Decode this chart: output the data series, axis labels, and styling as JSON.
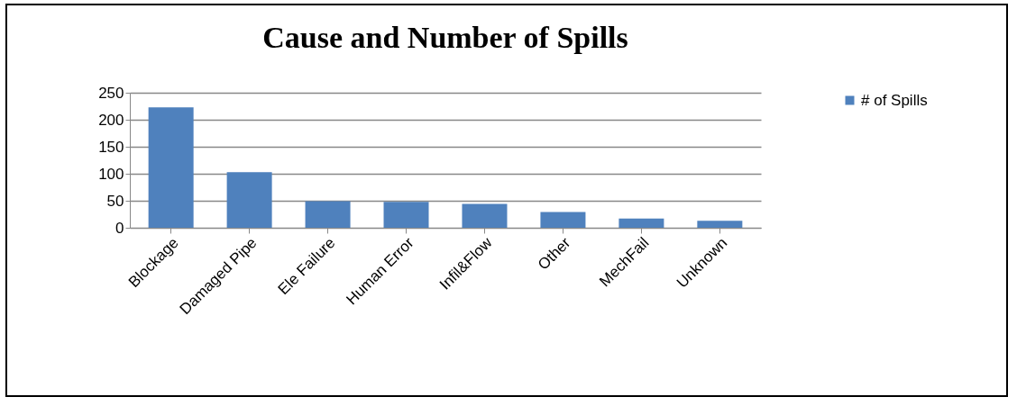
{
  "chart_data": {
    "type": "bar",
    "title": "Cause and Number of Spills",
    "categories": [
      "Blockage",
      "Damaged Pipe",
      "Ele Failure",
      "Human Error",
      "Infil&Flow",
      "Other",
      "MechFail",
      "Unknown"
    ],
    "series": [
      {
        "name": "# of Spills",
        "color": "#4f81bd",
        "values": [
          223,
          103,
          49,
          48,
          44,
          29,
          17,
          13
        ]
      }
    ],
    "ylim": [
      0,
      250
    ],
    "yticks": [
      0,
      50,
      100,
      150,
      200,
      250
    ],
    "grid": "y",
    "legend": "right"
  }
}
